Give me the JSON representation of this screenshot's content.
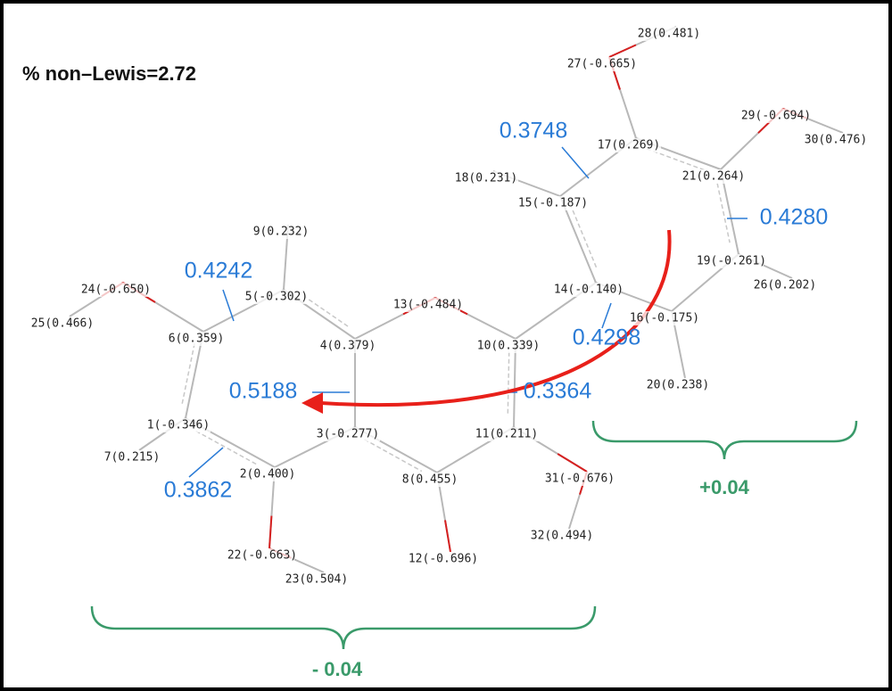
{
  "title": "% non–Lewis=2.72",
  "atoms": [
    "1(-0.346)",
    "2(0.400)",
    "3(-0.277)",
    "4(0.379)",
    "5(-0.302)",
    "6(0.359)",
    "7(0.215)",
    "8(0.455)",
    "9(0.232)",
    "10(0.339)",
    "11(0.211)",
    "12(-0.696)",
    "13(-0.484)",
    "14(-0.140)",
    "15(-0.187)",
    "16(-0.175)",
    "17(0.269)",
    "18(0.231)",
    "19(-0.261)",
    "20(0.238)",
    "21(0.264)",
    "22(-0.663)",
    "23(0.504)",
    "24(-0.650)",
    "25(0.466)",
    "26(0.202)",
    "27(-0.665)",
    "28(0.481)",
    "29(-0.694)",
    "30(0.476)",
    "31(-0.676)",
    "32(0.494)"
  ],
  "bond_orders": [
    "0.3748",
    "0.4242",
    "0.4280",
    "0.4298",
    "0.5188",
    "0.3364",
    "0.3862"
  ],
  "groups": [
    "+0.04",
    "- 0.04"
  ]
}
